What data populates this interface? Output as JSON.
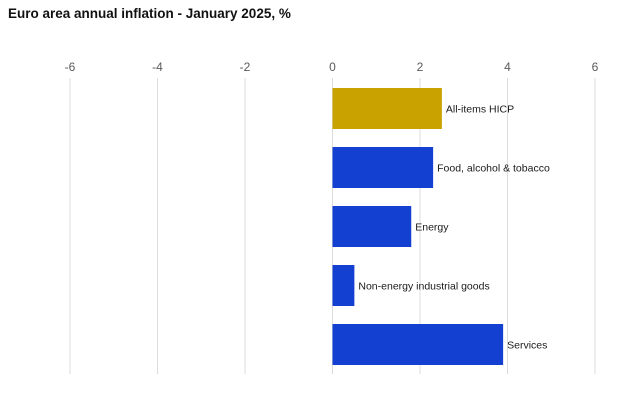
{
  "chart_data": {
    "type": "bar",
    "orientation": "horizontal",
    "title": "Euro area annual inflation - January 2025, %",
    "xlabel": "",
    "ylabel": "",
    "xlim": [
      -6,
      6
    ],
    "x_ticks": [
      -6,
      -4,
      -2,
      0,
      2,
      4,
      6
    ],
    "tick_position": "top",
    "grid": "vertical",
    "legend": "none",
    "categories": [
      "All-items HICP",
      "Food, alcohol & tobacco",
      "Energy",
      "Non-energy industrial goods",
      "Services"
    ],
    "values": [
      2.5,
      2.3,
      1.8,
      0.5,
      3.9
    ],
    "bar_colors": [
      "#C9A200",
      "#1340D0",
      "#1340D0",
      "#1340D0",
      "#1340D0"
    ]
  }
}
